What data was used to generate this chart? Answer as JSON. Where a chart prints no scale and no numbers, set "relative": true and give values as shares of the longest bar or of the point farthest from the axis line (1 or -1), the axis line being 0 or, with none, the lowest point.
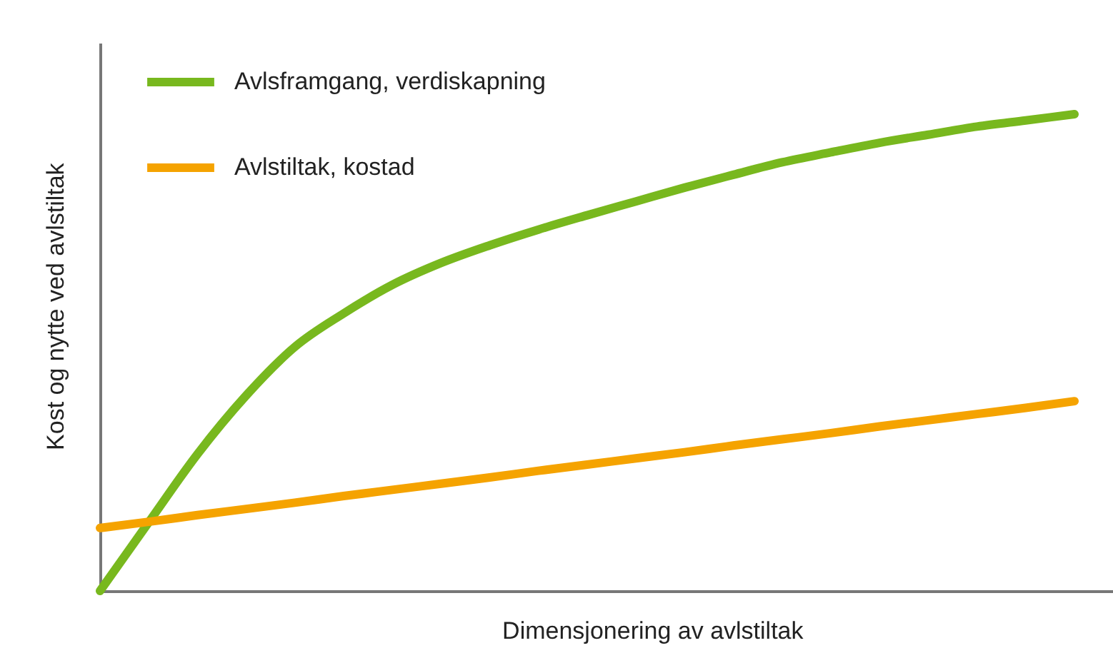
{
  "chart_data": {
    "type": "line",
    "xlabel": "Dimensjonering av avlstiltak",
    "ylabel": "Kost og nytte ved avlstiltak",
    "relative": true,
    "categories": [
      null,
      null,
      null,
      null,
      null,
      null,
      null,
      null,
      null,
      null,
      null,
      null,
      null,
      null,
      null,
      null,
      null,
      null,
      null,
      null,
      null
    ],
    "series": [
      {
        "name": "Avlsframgang, verdiskapning",
        "color": "#78b81e",
        "values": [
          0,
          0.144,
          0.287,
          0.41,
          0.512,
          0.582,
          0.642,
          0.688,
          0.725,
          0.758,
          0.788,
          0.817,
          0.846,
          0.873,
          0.899,
          0.92,
          0.94,
          0.957,
          0.974,
          0.987,
          1
        ]
      },
      {
        "name": "Avlstiltak, kostad",
        "color": "#f5a300",
        "values": [
          0.132,
          0.145,
          0.159,
          0.172,
          0.185,
          0.199,
          0.212,
          0.225,
          0.238,
          0.252,
          0.265,
          0.278,
          0.291,
          0.305,
          0.318,
          0.331,
          0.345,
          0.358,
          0.371,
          0.384,
          0.398
        ]
      }
    ],
    "legend": "top left",
    "grid": false,
    "tick_labels": false,
    "line_style": "solid"
  }
}
